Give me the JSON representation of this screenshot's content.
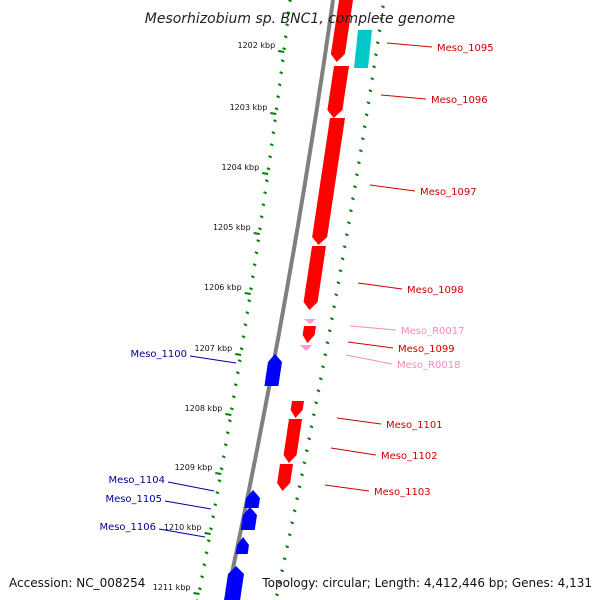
{
  "title": "Mesorhizobium sp. BNC1, complete genome",
  "footer": {
    "accession": "Accession: NC_008254",
    "topology": "Topology: circular; Length: 4,412,446 bp; Genes: 4,131"
  },
  "colors": {
    "forward_gene": "#ff0000",
    "reverse_gene": "#0000ff",
    "rna_gene": "#00c8c8",
    "pseudo_gene": "#ff99cc",
    "backbone": "#808080",
    "tick": "#008000"
  },
  "scale_ticks": [
    {
      "label": "1202 kbp"
    },
    {
      "label": "1203 kbp"
    },
    {
      "label": "1204 kbp"
    },
    {
      "label": "1205 kbp"
    },
    {
      "label": "1206 kbp"
    },
    {
      "label": "1207 kbp"
    },
    {
      "label": "1208 kbp"
    },
    {
      "label": "1209 kbp"
    },
    {
      "label": "1210 kbp"
    },
    {
      "label": "1211 kbp"
    }
  ],
  "gene_labels": [
    {
      "name": "Meso_1095",
      "strand": "forward"
    },
    {
      "name": "Meso_1096",
      "strand": "forward"
    },
    {
      "name": "Meso_1097",
      "strand": "forward"
    },
    {
      "name": "Meso_1098",
      "strand": "forward"
    },
    {
      "name": "Meso_R0017",
      "strand": "pseudo"
    },
    {
      "name": "Meso_1099",
      "strand": "forward"
    },
    {
      "name": "Meso_R0018",
      "strand": "pseudo"
    },
    {
      "name": "Meso_1101",
      "strand": "forward"
    },
    {
      "name": "Meso_1102",
      "strand": "forward"
    },
    {
      "name": "Meso_1103",
      "strand": "forward"
    },
    {
      "name": "Meso_1100",
      "strand": "reverse"
    },
    {
      "name": "Meso_1104",
      "strand": "reverse"
    },
    {
      "name": "Meso_1105",
      "strand": "reverse"
    },
    {
      "name": "Meso_1106",
      "strand": "reverse"
    }
  ]
}
